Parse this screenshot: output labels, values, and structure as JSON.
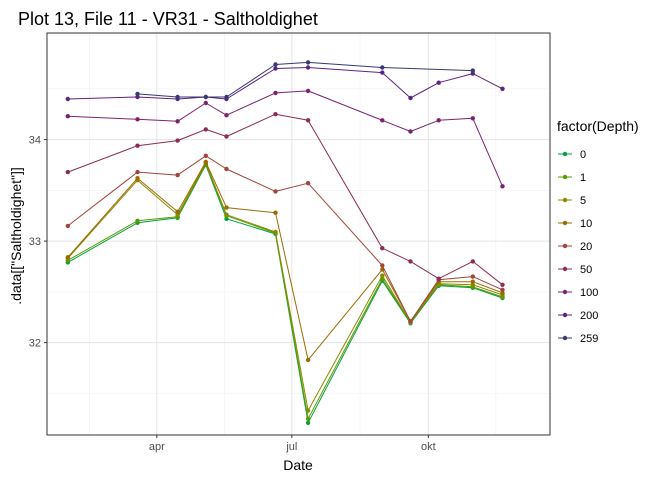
{
  "chart_data": {
    "type": "line",
    "title": "Plot 13, File 11 - VR31  -  Saltholdighet",
    "xlabel": "Date",
    "ylabel": ".data[[\"Saltholdighet\"]]",
    "x_ticks": [
      "apr",
      "jul",
      "okt"
    ],
    "x_tick_dates": [
      "2000-04-01",
      "2000-07-01",
      "2000-10-01"
    ],
    "xlim": [
      "2000-01-18",
      "2000-12-22"
    ],
    "ylim": [
      31.09,
      35.05
    ],
    "y_ticks": [
      32,
      33,
      34
    ],
    "grid": true,
    "legend": {
      "title": "factor(Depth)",
      "position": "right"
    },
    "x": [
      "2000-02-01",
      "2000-03-19",
      "2000-04-15",
      "2000-05-04",
      "2000-05-18",
      "2000-06-20",
      "2000-07-12",
      "2000-08-31",
      "2000-09-19",
      "2000-10-08",
      "2000-10-31",
      "2000-11-20"
    ],
    "series": [
      {
        "name": "0",
        "color": "#00a33c",
        "values": [
          32.79,
          33.18,
          33.23,
          33.75,
          33.22,
          33.07,
          31.21,
          32.61,
          32.19,
          32.56,
          32.54,
          32.44
        ]
      },
      {
        "name": "1",
        "color": "#5b9b00",
        "values": [
          32.81,
          33.2,
          33.24,
          33.76,
          33.25,
          33.08,
          31.25,
          32.63,
          32.2,
          32.57,
          32.55,
          32.45
        ]
      },
      {
        "name": "5",
        "color": "#8a8a00",
        "values": [
          32.83,
          33.6,
          33.26,
          33.77,
          33.26,
          33.09,
          31.33,
          32.66,
          32.2,
          32.58,
          32.57,
          32.47
        ]
      },
      {
        "name": "10",
        "color": "#9b6b00",
        "values": [
          32.84,
          33.62,
          33.29,
          33.78,
          33.33,
          33.28,
          31.83,
          32.72,
          32.21,
          32.6,
          32.6,
          32.49
        ]
      },
      {
        "name": "20",
        "color": "#a0443c",
        "values": [
          33.15,
          33.68,
          33.65,
          33.84,
          33.71,
          33.49,
          33.57,
          32.76,
          32.21,
          32.62,
          32.65,
          32.52
        ]
      },
      {
        "name": "50",
        "color": "#8e2c57",
        "values": [
          33.68,
          33.94,
          33.99,
          34.1,
          34.03,
          34.25,
          34.19,
          32.93,
          32.8,
          32.63,
          32.8,
          32.57
        ]
      },
      {
        "name": "100",
        "color": "#7b2370",
        "values": [
          34.23,
          34.2,
          34.18,
          34.36,
          34.24,
          34.46,
          34.48,
          34.19,
          34.08,
          34.19,
          34.21,
          33.54
        ]
      },
      {
        "name": "200",
        "color": "#5c2380",
        "values": [
          34.4,
          34.42,
          34.4,
          34.42,
          34.4,
          34.7,
          34.71,
          34.66,
          34.41,
          34.56,
          34.65,
          34.5
        ]
      },
      {
        "name": "259",
        "color": "#343a73",
        "values": [
          null,
          34.45,
          34.42,
          34.42,
          34.42,
          34.74,
          34.76,
          34.71,
          null,
          null,
          34.68,
          null
        ]
      }
    ]
  }
}
